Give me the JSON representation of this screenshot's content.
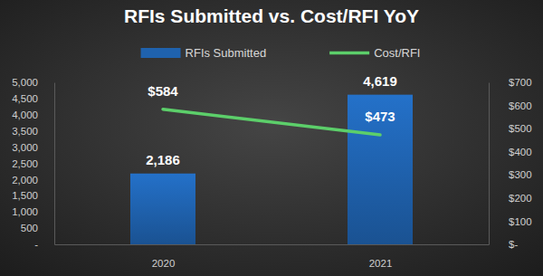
{
  "chart_data": {
    "type": "bar",
    "title": "RFIs Submitted vs. Cost/RFI YoY",
    "categories": [
      "2020",
      "2021"
    ],
    "series": [
      {
        "name": "RFIs Submitted",
        "type": "bar",
        "color": "#1f62ae",
        "values": [
          2186,
          4619
        ],
        "value_labels": [
          "2,186",
          "4,619"
        ]
      },
      {
        "name": "Cost/RFI",
        "type": "line",
        "color": "#5ccf6a",
        "axis": "y2",
        "values": [
          584,
          473
        ],
        "value_labels": [
          "$584",
          "$473"
        ]
      }
    ],
    "ylim": [
      0,
      5000
    ],
    "yticks": [
      {
        "value": 0,
        "label": "-"
      },
      500,
      {
        "value": 1000,
        "label": "1,000"
      },
      {
        "value": 1500,
        "label": "1,500"
      },
      {
        "value": 2000,
        "label": "2,000"
      },
      {
        "value": 2500,
        "label": "2,500"
      },
      {
        "value": 3000,
        "label": "3,000"
      },
      {
        "value": 3500,
        "label": "3,500"
      },
      {
        "value": 4000,
        "label": "4,000"
      },
      {
        "value": 4500,
        "label": "4,500"
      },
      {
        "value": 5000,
        "label": "5,000"
      }
    ],
    "y2lim": [
      0,
      700
    ],
    "y2ticks": [
      {
        "value": 0,
        "label": "$-"
      },
      {
        "value": 100,
        "label": "$100"
      },
      {
        "value": 200,
        "label": "$200"
      },
      {
        "value": 300,
        "label": "$300"
      },
      {
        "value": 400,
        "label": "$400"
      },
      {
        "value": 500,
        "label": "$500"
      },
      {
        "value": 600,
        "label": "$600"
      },
      {
        "value": 700,
        "label": "$700"
      }
    ],
    "grid": false,
    "legend": "top",
    "data_labels": true
  }
}
